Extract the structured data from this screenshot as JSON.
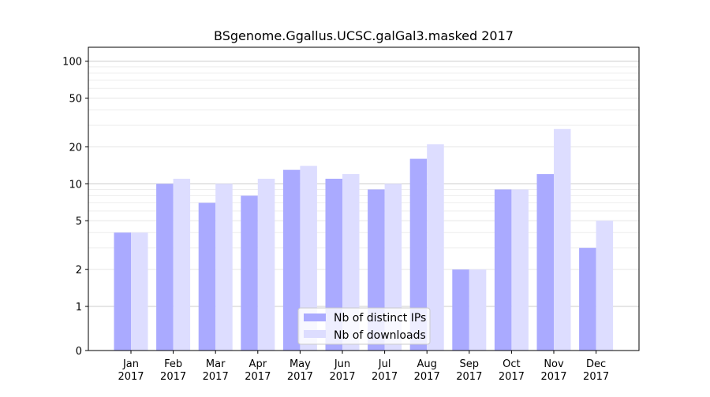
{
  "chart_data": {
    "type": "bar",
    "title": "BSgenome.Ggallus.UCSC.galGal3.masked 2017",
    "xlabel": "",
    "ylabel": "",
    "yscale": "symlog",
    "ylim": [
      0,
      130
    ],
    "yticks": [
      0,
      1,
      2,
      5,
      10,
      20,
      50,
      100
    ],
    "ytick_labels": [
      "0",
      "1",
      "2",
      "5",
      "10",
      "20",
      "50",
      "100"
    ],
    "categories": [
      [
        "Jan",
        "2017"
      ],
      [
        "Feb",
        "2017"
      ],
      [
        "Mar",
        "2017"
      ],
      [
        "Apr",
        "2017"
      ],
      [
        "May",
        "2017"
      ],
      [
        "Jun",
        "2017"
      ],
      [
        "Jul",
        "2017"
      ],
      [
        "Aug",
        "2017"
      ],
      [
        "Sep",
        "2017"
      ],
      [
        "Oct",
        "2017"
      ],
      [
        "Nov",
        "2017"
      ],
      [
        "Dec",
        "2017"
      ]
    ],
    "series": [
      {
        "name": "Nb of distinct IPs",
        "color": "#aaaaff",
        "values": [
          4,
          10,
          7,
          8,
          13,
          11,
          9,
          16,
          2,
          9,
          12,
          3
        ]
      },
      {
        "name": "Nb of downloads",
        "color": "#ddddff",
        "values": [
          4,
          11,
          10,
          11,
          14,
          12,
          10,
          21,
          2,
          9,
          28,
          5
        ]
      }
    ],
    "grid": true,
    "legend_position": "bottom-center"
  }
}
